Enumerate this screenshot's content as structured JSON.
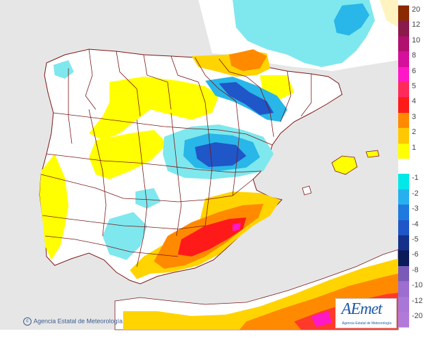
{
  "credit": "Agencia Estatal de Meteorología",
  "logo": {
    "brand": "AEmet",
    "subtitle": "Agencia Estatal de Meteorología"
  },
  "legend": [
    {
      "label": "20",
      "color": "#8b2a00"
    },
    {
      "label": "12",
      "color": "#8a1a4a"
    },
    {
      "label": "10",
      "color": "#b0106e"
    },
    {
      "label": "8",
      "color": "#d6109a"
    },
    {
      "label": "6",
      "color": "#ff18c8"
    },
    {
      "label": "5",
      "color": "#ff2a5a"
    },
    {
      "label": "4",
      "color": "#ff1a1a"
    },
    {
      "label": "3",
      "color": "#ff8a00"
    },
    {
      "label": "2",
      "color": "#ffc800"
    },
    {
      "label": "1",
      "color": "#ffff00"
    },
    {
      "label": "",
      "color": "#ffffff"
    },
    {
      "label": "-1",
      "color": "#00e8e8"
    },
    {
      "label": "-2",
      "color": "#27b0ef"
    },
    {
      "label": "-3",
      "color": "#1f7ae0"
    },
    {
      "label": "-4",
      "color": "#1f56c8"
    },
    {
      "label": "-5",
      "color": "#15308a"
    },
    {
      "label": "-6",
      "color": "#0a1a5a"
    },
    {
      "label": "-8",
      "color": "#7a5ab8"
    },
    {
      "label": "-10",
      "color": "#9b6ed0"
    },
    {
      "label": "-12",
      "color": "#a878d8"
    },
    {
      "label": "-20",
      "color": "#b27ad8"
    }
  ],
  "colors": {
    "sea": "#e6e6e6",
    "land": "#ffffff",
    "border": "#7a1414"
  }
}
